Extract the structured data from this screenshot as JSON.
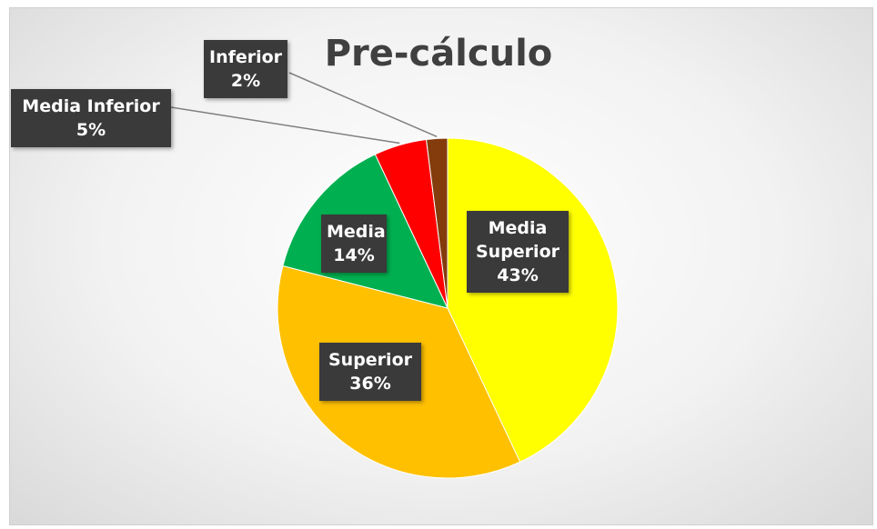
{
  "chart_data": {
    "type": "pie",
    "title": "Pre-cálculo",
    "categories": [
      "Media Superior",
      "Superior",
      "Media",
      "Media Inferior",
      "Inferior"
    ],
    "values": [
      43,
      36,
      14,
      5,
      2
    ],
    "value_labels": [
      "43%",
      "36%",
      "14%",
      "5%",
      "2%"
    ],
    "colors": [
      "#ffff00",
      "#ffc000",
      "#00b050",
      "#ff0000",
      "#843c0c"
    ]
  }
}
